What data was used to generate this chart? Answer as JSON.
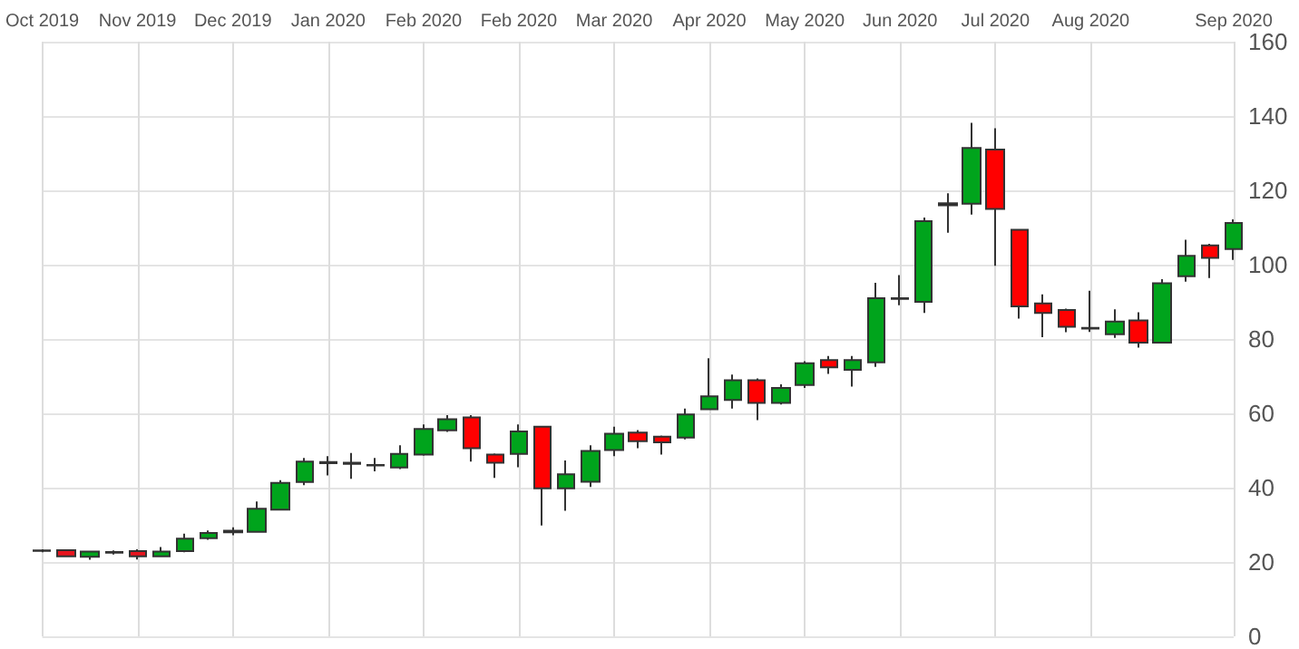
{
  "chart_data": {
    "type": "candlestick",
    "categories": [
      "Oct 2019",
      null,
      null,
      null,
      "Nov 2019",
      null,
      null,
      null,
      "Dec 2019",
      null,
      null,
      null,
      "Jan 2020",
      null,
      null,
      null,
      "Feb 2020",
      null,
      null,
      null,
      "Feb 2020",
      null,
      null,
      null,
      "Mar 2020",
      null,
      null,
      null,
      "Apr 2020",
      null,
      null,
      null,
      "May 2020",
      null,
      null,
      null,
      "Jun 2020",
      null,
      null,
      null,
      "Jul 2020",
      null,
      null,
      null,
      "Aug 2020",
      null,
      null,
      null,
      null,
      null,
      "Sep 2020"
    ],
    "ohlc": [
      [
        23,
        23.4,
        22.6,
        23.1
      ],
      [
        23.2,
        23.4,
        21.3,
        21.5
      ],
      [
        21.4,
        23,
        20.6,
        22.8
      ],
      [
        22.5,
        23.1,
        22,
        22.7
      ],
      [
        22.9,
        23.4,
        20.7,
        21.5
      ],
      [
        21.5,
        24,
        21.3,
        22.8
      ],
      [
        22.9,
        27.6,
        22.6,
        26.3
      ],
      [
        26.4,
        28.5,
        26,
        27.8
      ],
      [
        28,
        29.3,
        27.2,
        28.4
      ],
      [
        28.1,
        36.3,
        28,
        34.3
      ],
      [
        34.1,
        42,
        34,
        41.3
      ],
      [
        41.5,
        48,
        40.7,
        47
      ],
      [
        46.6,
        48.5,
        43.3,
        46.9
      ],
      [
        46.4,
        49.3,
        42.4,
        46.7
      ],
      [
        46,
        48,
        44.4,
        46.1
      ],
      [
        45.4,
        51.4,
        45,
        49.1
      ],
      [
        48.9,
        57,
        48.6,
        55.8
      ],
      [
        55.4,
        59.5,
        55,
        58.4
      ],
      [
        58.9,
        59.5,
        47,
        50.6
      ],
      [
        48.9,
        49.2,
        42.6,
        46.7
      ],
      [
        49.1,
        57,
        45.5,
        55.1
      ],
      [
        56.4,
        56.6,
        29.8,
        39.8
      ],
      [
        39.8,
        47.3,
        33.8,
        43.6
      ],
      [
        41.6,
        51.4,
        40.2,
        49.9
      ],
      [
        50.1,
        56.4,
        48.5,
        54.5
      ],
      [
        54.8,
        55.5,
        50.6,
        52.5
      ],
      [
        53.7,
        54,
        48.9,
        52.2
      ],
      [
        53.5,
        61.3,
        53,
        59.7
      ],
      [
        61.1,
        74.8,
        61,
        64.6
      ],
      [
        63.6,
        70.4,
        61.3,
        68.9
      ],
      [
        68.9,
        69.4,
        58.2,
        62.8
      ],
      [
        62.8,
        67.8,
        62.4,
        66.8
      ],
      [
        67.6,
        74,
        66.8,
        73.5
      ],
      [
        74.3,
        75.4,
        70.6,
        72.4
      ],
      [
        71.7,
        75.4,
        67.2,
        74.3
      ],
      [
        73.7,
        95.1,
        72.5,
        91
      ],
      [
        90.8,
        97.2,
        89.1,
        91
      ],
      [
        90,
        112.7,
        87,
        111.7
      ],
      [
        116,
        119.2,
        108.6,
        116.5
      ],
      [
        116.4,
        138.2,
        113.5,
        131.4
      ],
      [
        131,
        136.7,
        99.7,
        115
      ],
      [
        109.4,
        109.6,
        85.5,
        88.8
      ],
      [
        89.6,
        92,
        80.5,
        87
      ],
      [
        87.8,
        88.2,
        81.8,
        83.3
      ],
      [
        83,
        93,
        81.9,
        82.8
      ],
      [
        81.3,
        88,
        80.3,
        84.7
      ],
      [
        85,
        87.2,
        77.7,
        79
      ],
      [
        79,
        96.1,
        79,
        95
      ],
      [
        96.9,
        106.7,
        95.4,
        102.4
      ],
      [
        105.2,
        105.6,
        96.4,
        101.8
      ],
      [
        104.2,
        112.2,
        101.3,
        111.2
      ]
    ],
    "colors": [
      "#1a1a1a",
      "#e8141e",
      "#00a41c",
      "#1a1a1a",
      "#e8141e",
      "#00a41c",
      "#00a41c",
      "#00a41c",
      "#1a1a1a",
      "#00a41c",
      "#00a41c",
      "#00a41c",
      "#1a1a1a",
      "#1a1a1a",
      "#1a1a1a",
      "#00a41c",
      "#00a41c",
      "#00a41c",
      "#ff0000",
      "#ff0000",
      "#00a41c",
      "#ff0000",
      "#00a41c",
      "#00a41c",
      "#00a41c",
      "#ff0000",
      "#ff0000",
      "#00a41c",
      "#00a41c",
      "#00a41c",
      "#ff0000",
      "#00a41c",
      "#00a41c",
      "#ff0000",
      "#00a41c",
      "#00a41c",
      "#1a1a1a",
      "#00a41c",
      "#1a1a1a",
      "#00a41c",
      "#ff0000",
      "#ff0000",
      "#ff0000",
      "#ff0000",
      "#1a1a1a",
      "#00a41c",
      "#ff0000",
      "#00a41c",
      "#00a41c",
      "#ff0000",
      "#00a41c"
    ],
    "ylim": [
      0,
      160
    ],
    "yticks": [
      0,
      20,
      40,
      60,
      80,
      100,
      120,
      140,
      160
    ],
    "grid": true
  }
}
